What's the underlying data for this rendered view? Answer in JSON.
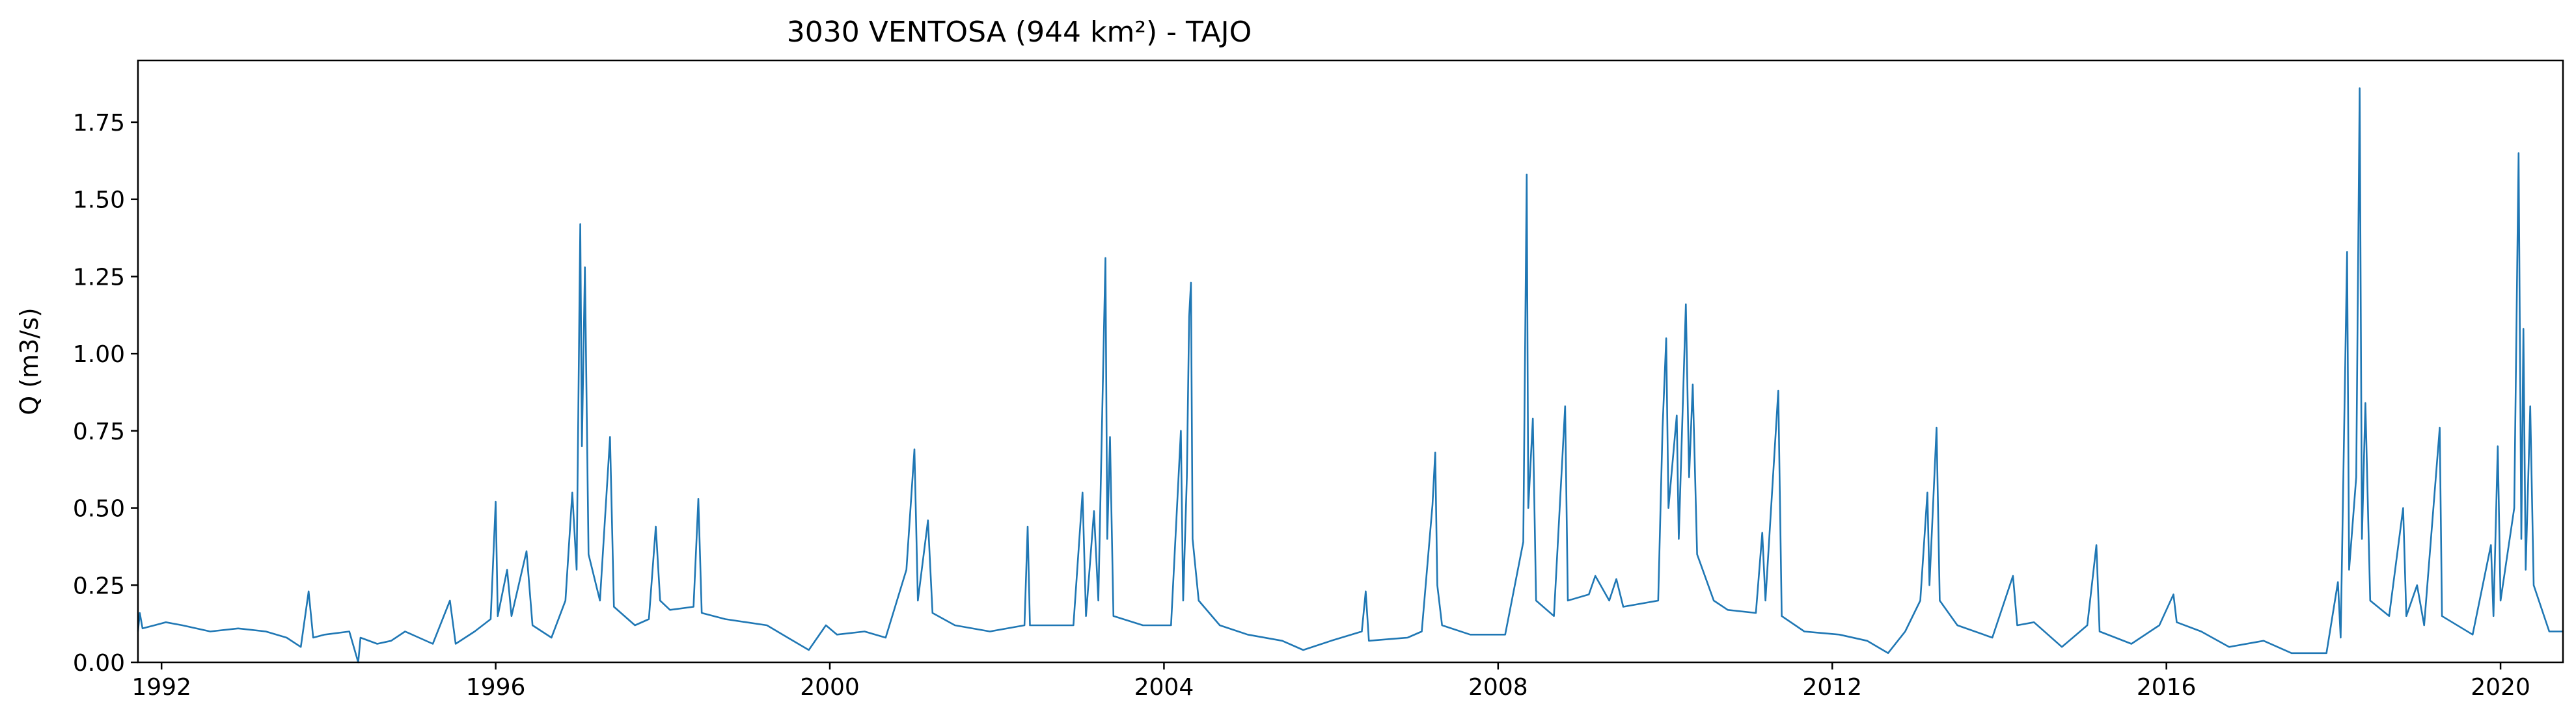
{
  "chart_data": {
    "type": "line",
    "title": "3030 VENTOSA (944 km²) - TAJO",
    "xlabel": "",
    "ylabel": "Q (m3/s)",
    "x_axis_type": "date",
    "xlim": [
      "1991-09-20",
      "2020-09-30"
    ],
    "ylim": [
      0.0,
      1.95
    ],
    "xticks": [
      {
        "value": "1992-01-01",
        "label": "1992"
      },
      {
        "value": "1996-01-01",
        "label": "1996"
      },
      {
        "value": "2000-01-01",
        "label": "2000"
      },
      {
        "value": "2004-01-01",
        "label": "2004"
      },
      {
        "value": "2008-01-01",
        "label": "2008"
      },
      {
        "value": "2012-01-01",
        "label": "2012"
      },
      {
        "value": "2016-01-01",
        "label": "2016"
      },
      {
        "value": "2020-01-01",
        "label": "2020"
      }
    ],
    "yticks": [
      {
        "value": 0.0,
        "label": "0.00"
      },
      {
        "value": 0.25,
        "label": "0.25"
      },
      {
        "value": 0.5,
        "label": "0.50"
      },
      {
        "value": 0.75,
        "label": "0.75"
      },
      {
        "value": 1.0,
        "label": "1.00"
      },
      {
        "value": 1.25,
        "label": "1.25"
      },
      {
        "value": 1.5,
        "label": "1.50"
      },
      {
        "value": 1.75,
        "label": "1.75"
      }
    ],
    "grid": false,
    "legend": "none",
    "series": [
      {
        "color": "#1f77b4",
        "points": [
          [
            "1991-09-20",
            0.1
          ],
          [
            "1991-09-28",
            0.16
          ],
          [
            "1991-10-10",
            0.11
          ],
          [
            "1991-12-01",
            0.12
          ],
          [
            "1992-01-20",
            0.13
          ],
          [
            "1992-04-01",
            0.12
          ],
          [
            "1992-08-01",
            0.1
          ],
          [
            "1992-12-01",
            0.11
          ],
          [
            "1993-04-01",
            0.1
          ],
          [
            "1993-07-01",
            0.08
          ],
          [
            "1993-09-01",
            0.05
          ],
          [
            "1993-10-05",
            0.23
          ],
          [
            "1993-10-25",
            0.08
          ],
          [
            "1993-12-15",
            0.09
          ],
          [
            "1994-04-01",
            0.1
          ],
          [
            "1994-05-10",
            0.0
          ],
          [
            "1994-05-20",
            0.08
          ],
          [
            "1994-08-01",
            0.06
          ],
          [
            "1994-10-01",
            0.07
          ],
          [
            "1994-12-01",
            0.1
          ],
          [
            "1995-04-01",
            0.06
          ],
          [
            "1995-06-15",
            0.2
          ],
          [
            "1995-07-10",
            0.06
          ],
          [
            "1995-10-01",
            0.1
          ],
          [
            "1995-12-10",
            0.14
          ],
          [
            "1996-01-01",
            0.52
          ],
          [
            "1996-01-10",
            0.15
          ],
          [
            "1996-02-20",
            0.3
          ],
          [
            "1996-03-10",
            0.15
          ],
          [
            "1996-05-15",
            0.36
          ],
          [
            "1996-06-10",
            0.12
          ],
          [
            "1996-09-01",
            0.08
          ],
          [
            "1996-11-01",
            0.2
          ],
          [
            "1996-12-01",
            0.55
          ],
          [
            "1996-12-20",
            0.3
          ],
          [
            "1997-01-05",
            1.42
          ],
          [
            "1997-01-12",
            0.7
          ],
          [
            "1997-01-25",
            1.28
          ],
          [
            "1997-02-10",
            0.35
          ],
          [
            "1997-04-01",
            0.2
          ],
          [
            "1997-05-15",
            0.73
          ],
          [
            "1997-06-01",
            0.18
          ],
          [
            "1997-09-01",
            0.12
          ],
          [
            "1997-11-01",
            0.14
          ],
          [
            "1997-12-01",
            0.44
          ],
          [
            "1997-12-20",
            0.2
          ],
          [
            "1998-02-01",
            0.17
          ],
          [
            "1998-05-15",
            0.18
          ],
          [
            "1998-06-05",
            0.53
          ],
          [
            "1998-06-20",
            0.16
          ],
          [
            "1998-10-01",
            0.14
          ],
          [
            "1999-01-01",
            0.13
          ],
          [
            "1999-04-01",
            0.12
          ],
          [
            "1999-07-01",
            0.08
          ],
          [
            "1999-10-01",
            0.04
          ],
          [
            "1999-12-15",
            0.12
          ],
          [
            "2000-02-01",
            0.09
          ],
          [
            "2000-06-01",
            0.1
          ],
          [
            "2000-09-01",
            0.08
          ],
          [
            "2000-12-01",
            0.3
          ],
          [
            "2001-01-05",
            0.69
          ],
          [
            "2001-01-20",
            0.2
          ],
          [
            "2001-03-05",
            0.46
          ],
          [
            "2001-03-25",
            0.16
          ],
          [
            "2001-07-01",
            0.12
          ],
          [
            "2001-12-01",
            0.1
          ],
          [
            "2002-05-01",
            0.12
          ],
          [
            "2002-05-15",
            0.44
          ],
          [
            "2002-05-25",
            0.12
          ],
          [
            "2002-12-01",
            0.12
          ],
          [
            "2003-01-10",
            0.55
          ],
          [
            "2003-01-25",
            0.15
          ],
          [
            "2003-03-01",
            0.49
          ],
          [
            "2003-03-20",
            0.2
          ],
          [
            "2003-04-20",
            1.31
          ],
          [
            "2003-04-28",
            0.4
          ],
          [
            "2003-05-10",
            0.73
          ],
          [
            "2003-05-25",
            0.15
          ],
          [
            "2003-10-01",
            0.12
          ],
          [
            "2004-02-01",
            0.12
          ],
          [
            "2004-03-15",
            0.75
          ],
          [
            "2004-03-25",
            0.2
          ],
          [
            "2004-04-10",
            0.6
          ],
          [
            "2004-04-20",
            1.12
          ],
          [
            "2004-04-28",
            1.23
          ],
          [
            "2004-05-05",
            0.4
          ],
          [
            "2004-06-01",
            0.2
          ],
          [
            "2004-09-01",
            0.12
          ],
          [
            "2005-01-01",
            0.09
          ],
          [
            "2005-06-01",
            0.07
          ],
          [
            "2005-09-01",
            0.04
          ],
          [
            "2006-01-01",
            0.07
          ],
          [
            "2006-05-15",
            0.1
          ],
          [
            "2006-06-01",
            0.23
          ],
          [
            "2006-06-15",
            0.07
          ],
          [
            "2006-12-01",
            0.08
          ],
          [
            "2007-02-01",
            0.1
          ],
          [
            "2007-03-20",
            0.51
          ],
          [
            "2007-04-01",
            0.68
          ],
          [
            "2007-04-10",
            0.25
          ],
          [
            "2007-05-01",
            0.12
          ],
          [
            "2007-09-01",
            0.09
          ],
          [
            "2008-02-01",
            0.09
          ],
          [
            "2008-04-20",
            0.39
          ],
          [
            "2008-05-05",
            1.58
          ],
          [
            "2008-05-12",
            0.5
          ],
          [
            "2008-06-01",
            0.79
          ],
          [
            "2008-06-15",
            0.2
          ],
          [
            "2008-09-01",
            0.15
          ],
          [
            "2008-10-20",
            0.83
          ],
          [
            "2008-11-01",
            0.2
          ],
          [
            "2009-02-01",
            0.22
          ],
          [
            "2009-03-01",
            0.28
          ],
          [
            "2009-05-01",
            0.2
          ],
          [
            "2009-06-01",
            0.27
          ],
          [
            "2009-07-01",
            0.18
          ],
          [
            "2009-12-01",
            0.2
          ],
          [
            "2009-12-20",
            0.76
          ],
          [
            "2010-01-05",
            1.05
          ],
          [
            "2010-01-15",
            0.5
          ],
          [
            "2010-02-20",
            0.8
          ],
          [
            "2010-03-01",
            0.4
          ],
          [
            "2010-04-01",
            1.16
          ],
          [
            "2010-04-15",
            0.6
          ],
          [
            "2010-05-01",
            0.9
          ],
          [
            "2010-05-20",
            0.35
          ],
          [
            "2010-08-01",
            0.2
          ],
          [
            "2010-10-01",
            0.17
          ],
          [
            "2011-02-01",
            0.16
          ],
          [
            "2011-03-01",
            0.42
          ],
          [
            "2011-03-15",
            0.2
          ],
          [
            "2011-05-10",
            0.88
          ],
          [
            "2011-05-25",
            0.15
          ],
          [
            "2011-09-01",
            0.1
          ],
          [
            "2012-02-01",
            0.09
          ],
          [
            "2012-06-01",
            0.07
          ],
          [
            "2012-09-01",
            0.03
          ],
          [
            "2012-11-15",
            0.1
          ],
          [
            "2013-01-20",
            0.2
          ],
          [
            "2013-02-20",
            0.55
          ],
          [
            "2013-03-01",
            0.25
          ],
          [
            "2013-04-01",
            0.76
          ],
          [
            "2013-04-15",
            0.2
          ],
          [
            "2013-07-01",
            0.12
          ],
          [
            "2013-12-01",
            0.08
          ],
          [
            "2014-03-01",
            0.28
          ],
          [
            "2014-03-20",
            0.12
          ],
          [
            "2014-06-01",
            0.13
          ],
          [
            "2014-10-01",
            0.05
          ],
          [
            "2015-01-20",
            0.12
          ],
          [
            "2015-03-01",
            0.38
          ],
          [
            "2015-03-15",
            0.1
          ],
          [
            "2015-08-01",
            0.06
          ],
          [
            "2015-12-01",
            0.12
          ],
          [
            "2016-02-01",
            0.22
          ],
          [
            "2016-02-15",
            0.13
          ],
          [
            "2016-06-01",
            0.1
          ],
          [
            "2016-10-01",
            0.05
          ],
          [
            "2017-03-01",
            0.07
          ],
          [
            "2017-07-01",
            0.03
          ],
          [
            "2017-12-01",
            0.03
          ],
          [
            "2018-01-20",
            0.26
          ],
          [
            "2018-02-01",
            0.08
          ],
          [
            "2018-03-01",
            1.33
          ],
          [
            "2018-03-10",
            0.3
          ],
          [
            "2018-04-10",
            0.6
          ],
          [
            "2018-04-25",
            1.86
          ],
          [
            "2018-05-05",
            0.4
          ],
          [
            "2018-05-20",
            0.84
          ],
          [
            "2018-06-10",
            0.2
          ],
          [
            "2018-09-01",
            0.15
          ],
          [
            "2018-11-01",
            0.5
          ],
          [
            "2018-11-15",
            0.15
          ],
          [
            "2019-01-01",
            0.25
          ],
          [
            "2019-02-01",
            0.12
          ],
          [
            "2019-04-10",
            0.76
          ],
          [
            "2019-04-20",
            0.15
          ],
          [
            "2019-09-01",
            0.09
          ],
          [
            "2019-11-20",
            0.38
          ],
          [
            "2019-12-01",
            0.15
          ],
          [
            "2019-12-20",
            0.7
          ],
          [
            "2020-01-01",
            0.2
          ],
          [
            "2020-03-01",
            0.5
          ],
          [
            "2020-03-20",
            1.65
          ],
          [
            "2020-04-01",
            0.4
          ],
          [
            "2020-04-10",
            1.08
          ],
          [
            "2020-04-20",
            0.3
          ],
          [
            "2020-05-10",
            0.83
          ],
          [
            "2020-05-25",
            0.25
          ],
          [
            "2020-08-01",
            0.1
          ],
          [
            "2020-09-30",
            0.1
          ]
        ]
      }
    ]
  }
}
